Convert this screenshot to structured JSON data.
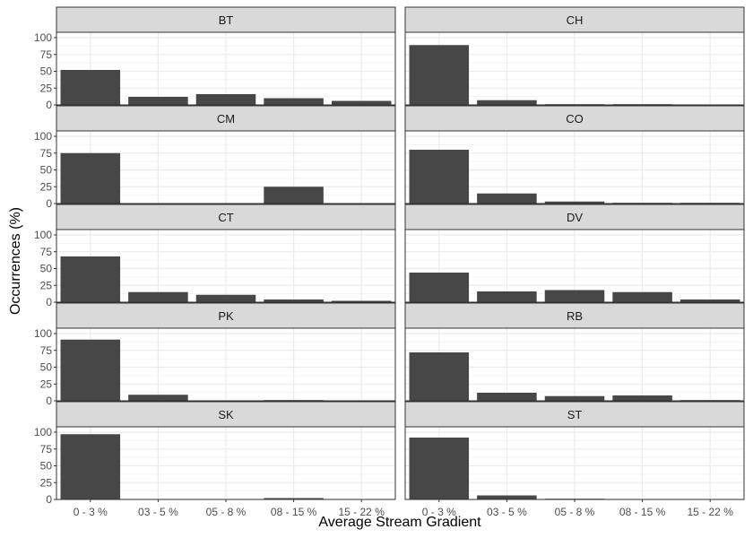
{
  "chart_data": {
    "type": "bar",
    "layout": "faceted",
    "xlabel": "Average Stream Gradient",
    "ylabel": "Occurrences (%)",
    "ylim": [
      0,
      108
    ],
    "yticks": [
      0,
      25,
      50,
      75,
      100
    ],
    "grid": true,
    "theme": "bw",
    "bar_color": "#474747",
    "grid_color": "#ebebeb",
    "strip_fill": "#d9d9d9",
    "categories": [
      "0 - 3 %",
      "03 - 5 %",
      "05 - 8 %",
      "08 - 15 %",
      "15 - 22 %"
    ],
    "facets": [
      {
        "name": "BT",
        "values": [
          52,
          12,
          16,
          10,
          6
        ]
      },
      {
        "name": "CH",
        "values": [
          89,
          7,
          1,
          1,
          0
        ]
      },
      {
        "name": "CM",
        "values": [
          75,
          0,
          0,
          25,
          0
        ]
      },
      {
        "name": "CO",
        "values": [
          80,
          15,
          3,
          1,
          1
        ]
      },
      {
        "name": "CT",
        "values": [
          68,
          15,
          11,
          4,
          2
        ]
      },
      {
        "name": "DV",
        "values": [
          44,
          16,
          18,
          15,
          4
        ]
      },
      {
        "name": "PK",
        "values": [
          91,
          9,
          0,
          1,
          0
        ]
      },
      {
        "name": "RB",
        "values": [
          72,
          12,
          7,
          8,
          1
        ]
      },
      {
        "name": "SK",
        "values": [
          97,
          0,
          0,
          2,
          0
        ]
      },
      {
        "name": "ST",
        "values": [
          92,
          6,
          1,
          0,
          0
        ]
      }
    ]
  }
}
